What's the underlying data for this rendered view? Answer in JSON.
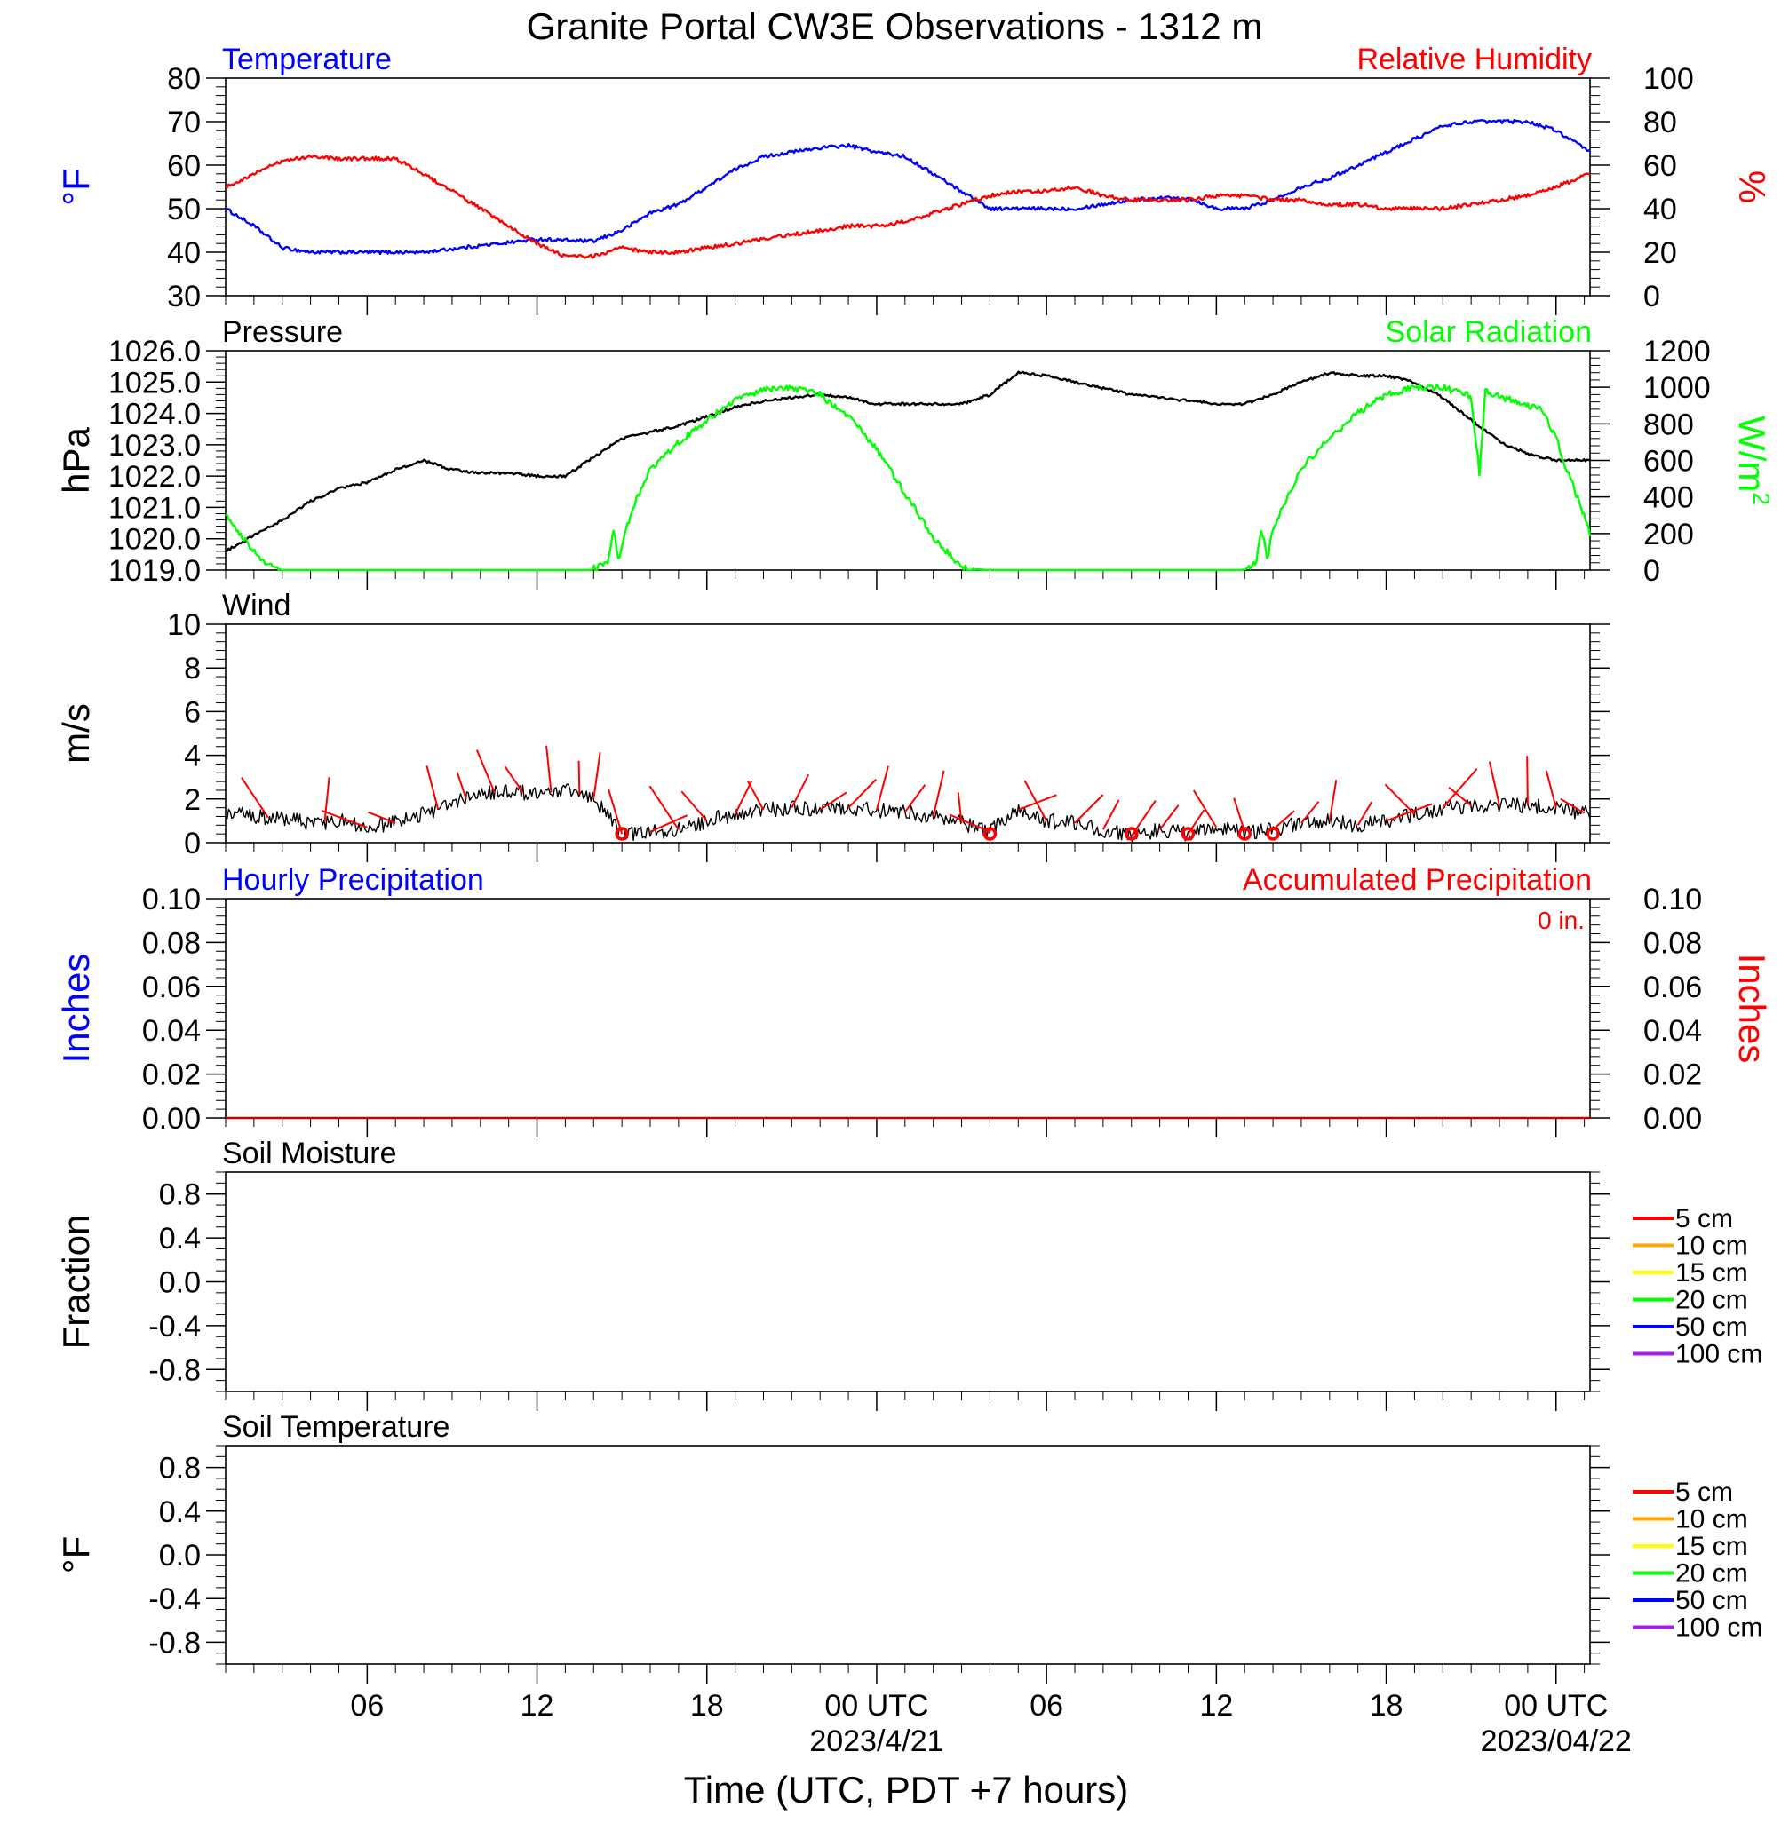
{
  "title": "Granite Portal CW3E Observations - 1312 m",
  "xlabel": "Time (UTC, PDT +7 hours)",
  "x_ticks": [
    {
      "label": "06",
      "sub": ""
    },
    {
      "label": "12",
      "sub": ""
    },
    {
      "label": "18",
      "sub": ""
    },
    {
      "label": "00 UTC",
      "sub": "2023/4/21"
    },
    {
      "label": "06",
      "sub": ""
    },
    {
      "label": "12",
      "sub": ""
    },
    {
      "label": "18",
      "sub": ""
    },
    {
      "label": "00 UTC",
      "sub": "2023/04/22"
    }
  ],
  "colors": {
    "temperature": "#0000ff",
    "humidity": "#ff0000",
    "pressure": "#000000",
    "solar": "#00ff00",
    "wind": "#000000",
    "barb": "#ff0000",
    "precip": "#c00000"
  },
  "chart_data": [
    {
      "type": "line",
      "panel": "temperature-humidity",
      "title_left": "Temperature",
      "title_right": "Relative Humidity",
      "ylabel_left": "°F",
      "ylabel_right": "%",
      "xlim_hours": [
        1,
        49.2
      ],
      "ylim_left": [
        30,
        80
      ],
      "ylim_right": [
        0,
        100
      ],
      "yticks_left": [
        "30",
        "40",
        "50",
        "60",
        "70",
        "80"
      ],
      "yticks_right": [
        "0",
        "20",
        "40",
        "60",
        "80",
        "100"
      ],
      "series": [
        {
          "name": "Temperature",
          "axis": "left",
          "x": [
            1,
            2,
            3,
            4,
            6,
            8,
            10,
            12,
            14,
            15,
            16,
            17,
            18,
            19,
            20,
            21,
            22,
            23,
            24,
            25,
            26,
            27,
            28,
            29,
            30,
            31,
            32,
            33,
            34,
            35,
            36,
            37,
            38,
            39,
            40,
            41,
            42,
            43,
            44,
            45,
            46,
            47,
            48,
            49.2
          ],
          "y": [
            50,
            46,
            41,
            40,
            40,
            40,
            41.5,
            43,
            42.5,
            45,
            49,
            51,
            55,
            59,
            62,
            63,
            64,
            64.5,
            63,
            62,
            58,
            54,
            50,
            50,
            50,
            50,
            51,
            52,
            52.5,
            52.5,
            50,
            50,
            52,
            55,
            57,
            60,
            63,
            66,
            69,
            70,
            70,
            70,
            68,
            63
          ]
        },
        {
          "name": "Relative Humidity",
          "axis": "right",
          "x": [
            1,
            2,
            3,
            4,
            5,
            6,
            7,
            8,
            9,
            10,
            11,
            12,
            13,
            14,
            15,
            16,
            17,
            18,
            19,
            20,
            21,
            22,
            23,
            24,
            25,
            26,
            27,
            28,
            29,
            30,
            31,
            32,
            33,
            34,
            35,
            36,
            37,
            38,
            39,
            40,
            41,
            42,
            43,
            44,
            45,
            46,
            47,
            48,
            49.2
          ],
          "y": [
            50,
            56,
            62,
            64,
            63,
            63,
            63,
            56,
            48,
            40,
            32,
            24,
            18,
            18,
            22,
            20,
            20,
            22,
            24,
            26,
            28,
            30,
            32,
            32,
            34,
            38,
            42,
            46,
            48,
            48,
            50,
            46,
            44,
            44,
            44,
            46,
            46,
            44,
            44,
            42,
            42,
            40,
            40,
            40,
            42,
            44,
            46,
            50,
            56
          ]
        }
      ]
    },
    {
      "type": "line",
      "panel": "pressure-solar",
      "title_left": "Pressure",
      "title_right": "Solar Radiation",
      "ylabel_left": "hPa",
      "ylabel_right": "W/m",
      "ylabel_right_sup": "2",
      "ylim_left": [
        1019,
        1026
      ],
      "ylim_right": [
        0,
        1200
      ],
      "yticks_left": [
        "1019.0",
        "1020.0",
        "1021.0",
        "1022.0",
        "1023.0",
        "1024.0",
        "1025.0",
        "1026.0"
      ],
      "yticks_right": [
        "0",
        "200",
        "400",
        "600",
        "800",
        "1000",
        "1200"
      ],
      "series": [
        {
          "name": "Pressure",
          "axis": "left",
          "x": [
            1,
            2,
            3,
            4,
            5,
            6,
            7,
            8,
            9,
            10,
            11,
            12,
            13,
            14,
            15,
            16,
            17,
            18,
            19,
            20,
            21,
            22,
            23,
            24,
            25,
            26,
            27,
            28,
            29,
            30,
            31,
            32,
            33,
            34,
            35,
            36,
            37,
            38,
            39,
            40,
            41,
            42,
            43,
            44,
            45,
            46,
            47,
            48,
            49.2
          ],
          "y": [
            1019.6,
            1020.1,
            1020.6,
            1021.2,
            1021.6,
            1021.8,
            1022.2,
            1022.5,
            1022.2,
            1022.1,
            1022.1,
            1022.0,
            1022.0,
            1022.6,
            1023.2,
            1023.4,
            1023.6,
            1023.9,
            1024.2,
            1024.4,
            1024.5,
            1024.6,
            1024.5,
            1024.3,
            1024.3,
            1024.3,
            1024.3,
            1024.6,
            1025.3,
            1025.2,
            1025.0,
            1024.8,
            1024.6,
            1024.5,
            1024.4,
            1024.3,
            1024.3,
            1024.6,
            1025.0,
            1025.3,
            1025.2,
            1025.2,
            1025.0,
            1024.5,
            1023.8,
            1023.1,
            1022.7,
            1022.5,
            1022.5
          ]
        },
        {
          "name": "Solar Radiation",
          "axis": "right",
          "x": [
            1,
            1.5,
            2,
            2.5,
            3,
            13.9,
            14.5,
            14.7,
            14.9,
            15.1,
            15.5,
            16,
            17,
            18,
            19,
            20,
            21,
            22,
            23,
            24,
            25,
            26,
            27,
            28,
            28.5,
            36.9,
            37.4,
            37.6,
            37.8,
            38,
            38.5,
            39,
            40,
            41,
            42,
            43,
            44,
            45,
            45.3,
            45.5,
            46,
            47,
            47.5,
            48,
            48.5,
            48.8,
            49.2
          ],
          "y": [
            310,
            200,
            100,
            30,
            0,
            0,
            40,
            220,
            40,
            200,
            380,
            550,
            700,
            820,
            930,
            990,
            995,
            960,
            840,
            660,
            420,
            180,
            10,
            0,
            0,
            0,
            40,
            220,
            60,
            220,
            400,
            560,
            720,
            860,
            960,
            1000,
            1000,
            950,
            520,
            980,
            950,
            900,
            880,
            720,
            500,
            380,
            200
          ]
        }
      ]
    },
    {
      "type": "line",
      "panel": "wind",
      "title_left": "Wind",
      "ylabel_left": "m/s",
      "ylim_left": [
        0,
        10
      ],
      "yticks_left": [
        "0",
        "2",
        "4",
        "6",
        "8",
        "10"
      ],
      "series": [
        {
          "name": "Wind speed",
          "axis": "left",
          "x": [
            1,
            2,
            3,
            4,
            5,
            6,
            7,
            8,
            9,
            10,
            11,
            12,
            13,
            14,
            15,
            16,
            17,
            18,
            19,
            20,
            21,
            22,
            23,
            24,
            25,
            26,
            27,
            28,
            29,
            30,
            31,
            32,
            33,
            34,
            35,
            36,
            37,
            38,
            39,
            40,
            41,
            42,
            43,
            44,
            45,
            46,
            47,
            48,
            49.2
          ],
          "y": [
            1.4,
            1.2,
            1.1,
            0.9,
            1.0,
            0.7,
            0.9,
            1.3,
            1.8,
            2.2,
            2.4,
            2.2,
            2.4,
            2.0,
            0.4,
            0.5,
            0.6,
            1.0,
            1.3,
            1.5,
            1.6,
            1.5,
            1.6,
            1.5,
            1.4,
            1.2,
            0.9,
            0.5,
            1.5,
            1.0,
            0.9,
            0.6,
            0.3,
            0.6,
            0.4,
            0.7,
            0.5,
            0.6,
            0.9,
            1.0,
            0.8,
            1.0,
            1.3,
            1.6,
            1.7,
            1.7,
            1.7,
            1.6,
            1.3
          ]
        }
      ]
    },
    {
      "type": "line",
      "panel": "precipitation",
      "title_left": "Hourly Precipitation",
      "title_right": "Accumulated Precipitation",
      "annotation": "0 in.",
      "ylabel_left": "Inches",
      "ylabel_right": "Inches",
      "ylim_left": [
        0,
        0.1
      ],
      "ylim_right": [
        0,
        0.1
      ],
      "yticks_left": [
        "0.00",
        "0.02",
        "0.04",
        "0.06",
        "0.08",
        "0.10"
      ],
      "yticks_right": [
        "0.00",
        "0.02",
        "0.04",
        "0.06",
        "0.08",
        "0.10"
      ],
      "series": [
        {
          "name": "Accumulated Precipitation",
          "axis": "right",
          "x": [
            1,
            49.2
          ],
          "y": [
            0,
            0
          ]
        }
      ]
    },
    {
      "type": "line",
      "panel": "soil-moisture",
      "title_left": "Soil Moisture",
      "ylabel_left": "Fraction",
      "ylim_left": [
        -1,
        1
      ],
      "yticks_left": [
        "-0.8",
        "-0.4",
        "0.0",
        "0.4",
        "0.8"
      ],
      "legend": [
        {
          "label": "5 cm",
          "color": "#ff0000"
        },
        {
          "label": "10 cm",
          "color": "#ffa500"
        },
        {
          "label": "15 cm",
          "color": "#ffff00"
        },
        {
          "label": "20 cm",
          "color": "#00ff00"
        },
        {
          "label": "50 cm",
          "color": "#0000ff"
        },
        {
          "label": "100 cm",
          "color": "#a020f0"
        }
      ]
    },
    {
      "type": "line",
      "panel": "soil-temperature",
      "title_left": "Soil Temperature",
      "ylabel_left": "°F",
      "ylim_left": [
        -1,
        1
      ],
      "yticks_left": [
        "-0.8",
        "-0.4",
        "0.0",
        "0.4",
        "0.8"
      ],
      "legend": [
        {
          "label": "5 cm",
          "color": "#ff0000"
        },
        {
          "label": "10 cm",
          "color": "#ffa500"
        },
        {
          "label": "15 cm",
          "color": "#ffff00"
        },
        {
          "label": "20 cm",
          "color": "#00ff00"
        },
        {
          "label": "50 cm",
          "color": "#0000ff"
        },
        {
          "label": "100 cm",
          "color": "#a020f0"
        }
      ]
    }
  ],
  "wind_barbs": {
    "hours": [
      2.5,
      4.5,
      6,
      7,
      8.5,
      9.5,
      10.5,
      11.5,
      12.5,
      13.5,
      14,
      15,
      16,
      17,
      18,
      19,
      20,
      21,
      22,
      23,
      24,
      25,
      26,
      27,
      28,
      29,
      30,
      31,
      32,
      33,
      34,
      35,
      36,
      37,
      38,
      39,
      40,
      41,
      42,
      43,
      44,
      45,
      46,
      47,
      48,
      49
    ],
    "calm": [
      15,
      28,
      33,
      35,
      37,
      38
    ]
  }
}
